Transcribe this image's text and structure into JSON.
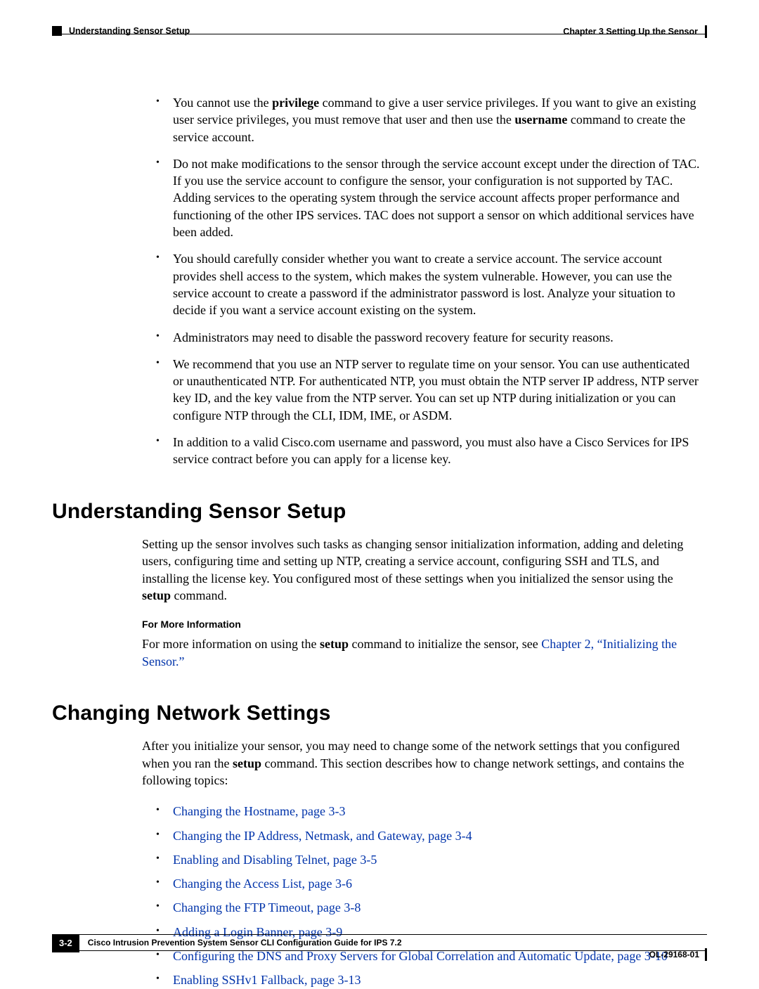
{
  "header": {
    "section": "Understanding Sensor Setup",
    "chapter": "Chapter 3      Setting Up the Sensor"
  },
  "bullets1": {
    "b0_pre": "You cannot use the ",
    "b0_bold1": "privilege",
    "b0_mid": " command to give a user service privileges. If you want to give an existing user service privileges, you must remove that user and then use the ",
    "b0_bold2": "username",
    "b0_post": " command to create the service account.",
    "b1": "Do not make modifications to the sensor through the service account except under the direction of TAC. If you use the service account to configure the sensor, your configuration is not supported by TAC. Adding services to the operating system through the service account affects proper performance and functioning of the other IPS services. TAC does not support a sensor on which additional services have been added.",
    "b2": "You should carefully consider whether you want to create a service account. The service account provides shell access to the system, which makes the system vulnerable. However, you can use the service account to create a password if the administrator password is lost. Analyze your situation to decide if you want a service account existing on the system.",
    "b3": "Administrators may need to disable the password recovery feature for security reasons.",
    "b4": "We recommend that you use an NTP server to regulate time on your sensor. You can use authenticated or unauthenticated NTP. For authenticated NTP, you must obtain the NTP server IP address, NTP server key ID, and the key value from the NTP server. You can set up NTP during initialization or you can configure NTP through the CLI, IDM, IME, or ASDM.",
    "b5": "In addition to a valid Cisco.com username and password, you must also have a Cisco Services for IPS service contract before you can apply for a license key."
  },
  "section1": {
    "heading": "Understanding Sensor Setup",
    "para_pre": "Setting up the sensor involves such tasks as changing sensor initialization information, adding and deleting users, configuring time and setting up NTP, creating a service account, configuring SSH and TLS, and installing the license key. You configured most of these settings when you initialized the sensor using the ",
    "para_bold": "setup",
    "para_post": " command.",
    "more_head": "For More Information",
    "more_pre": "For more information on using the ",
    "more_bold": "setup",
    "more_mid": " command to initialize the sensor, see ",
    "more_link": "Chapter 2, “Initializing the Sensor.”"
  },
  "section2": {
    "heading": "Changing Network Settings",
    "para_pre": "After you initialize your sensor, you may need to change some of the network settings that you configured when you ran the ",
    "para_bold": "setup",
    "para_post": " command. This section describes how to change network settings, and contains the following topics:",
    "links": [
      "Changing the Hostname, page 3-3",
      "Changing the IP Address, Netmask, and Gateway, page 3-4",
      "Enabling and Disabling Telnet, page 3-5",
      "Changing the Access List, page 3-6",
      "Changing the FTP Timeout, page 3-8",
      "Adding a Login Banner, page 3-9",
      "Configuring the DNS and Proxy Servers for Global Correlation and Automatic Update, page 3-10",
      "Enabling SSHv1 Fallback, page 3-13"
    ]
  },
  "footer": {
    "page": "3-2",
    "title": "Cisco Intrusion Prevention System Sensor CLI Configuration Guide for IPS 7.2",
    "doc": "OL-29168-01"
  },
  "colors": {
    "link": "#0033aa",
    "text": "#000000",
    "bg": "#ffffff"
  }
}
